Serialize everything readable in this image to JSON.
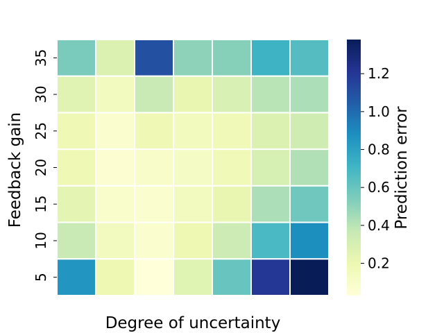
{
  "chart_data": {
    "type": "heatmap",
    "xlabel": "Degree of uncertainty",
    "ylabel": "Feedback gain",
    "colorbar_label": "Prediction error",
    "x_categories": [
      "",
      "",
      "",
      "",
      "",
      "",
      ""
    ],
    "y_categories": [
      "35",
      "30",
      "25",
      "20",
      "15",
      "10",
      "5"
    ],
    "values": [
      [
        0.55,
        0.28,
        1.1,
        0.5,
        0.52,
        0.72,
        0.65
      ],
      [
        0.25,
        0.14,
        0.36,
        0.22,
        0.29,
        0.4,
        0.43
      ],
      [
        0.18,
        0.08,
        0.18,
        0.15,
        0.17,
        0.28,
        0.33
      ],
      [
        0.18,
        0.06,
        0.1,
        0.12,
        0.17,
        0.3,
        0.42
      ],
      [
        0.24,
        0.09,
        0.08,
        0.14,
        0.22,
        0.43,
        0.58
      ],
      [
        0.36,
        0.14,
        0.08,
        0.19,
        0.34,
        0.68,
        0.88
      ],
      [
        0.85,
        0.19,
        0.03,
        0.26,
        0.6,
        1.2,
        1.38
      ]
    ],
    "vmin": 0.03,
    "vmax": 1.38,
    "colorbar_ticks": [
      0.2,
      0.4,
      0.6,
      0.8,
      1.0,
      1.2
    ],
    "colorbar_tick_labels": [
      "0.2",
      "0.4",
      "0.6",
      "0.8",
      "1.0",
      "1.2"
    ],
    "colormap": "YlGnBu",
    "colormap_stops": [
      "#ffffd9",
      "#edf8b1",
      "#c7e9b4",
      "#7fcdbb",
      "#41b6c4",
      "#1d91c0",
      "#225ea8",
      "#253494",
      "#081d58"
    ],
    "grid_line_color": "#ffffff"
  }
}
